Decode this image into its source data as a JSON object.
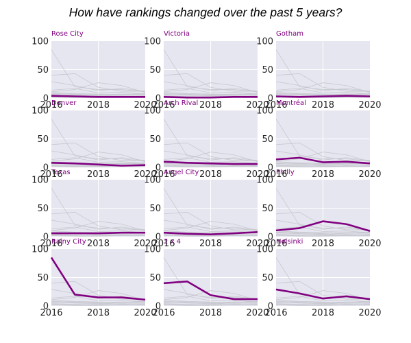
{
  "chart_data": {
    "type": "line",
    "title": "How have rankings changed over the past 5 years?",
    "x": [
      2016,
      2017,
      2018,
      2019,
      2020
    ],
    "xlim": [
      2016,
      2020
    ],
    "ylim": [
      0,
      100
    ],
    "xticks": [
      2016,
      2018,
      2020
    ],
    "yticks": [
      0,
      50,
      100
    ],
    "grid": true,
    "highlight_color": "#800080",
    "background_color": "#e6e6f0",
    "series": [
      {
        "name": "Rose City",
        "values": [
          4,
          3,
          2,
          2,
          2
        ]
      },
      {
        "name": "Victoria",
        "values": [
          2,
          1,
          1,
          2,
          2
        ]
      },
      {
        "name": "Gotham",
        "values": [
          3,
          2,
          3,
          4,
          3
        ]
      },
      {
        "name": "Denver",
        "values": [
          8,
          7,
          5,
          3,
          4
        ]
      },
      {
        "name": "Arch Rival",
        "values": [
          10,
          8,
          7,
          6,
          6
        ]
      },
      {
        "name": "Montréal",
        "values": [
          14,
          17,
          9,
          10,
          7
        ]
      },
      {
        "name": "Texas",
        "values": [
          6,
          6,
          6,
          7,
          7
        ]
      },
      {
        "name": "Angel City",
        "values": [
          7,
          5,
          4,
          6,
          8
        ]
      },
      {
        "name": "Philly",
        "values": [
          11,
          15,
          27,
          22,
          10
        ]
      },
      {
        "name": "Rainy City",
        "values": [
          85,
          20,
          15,
          15,
          11
        ]
      },
      {
        "name": "2 x 4",
        "values": [
          40,
          43,
          19,
          12,
          12
        ]
      },
      {
        "name": "Helsinki",
        "values": [
          29,
          22,
          13,
          17,
          12
        ]
      }
    ]
  }
}
